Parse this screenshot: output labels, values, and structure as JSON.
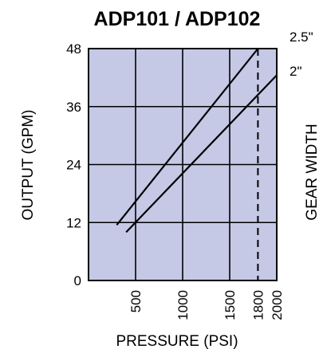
{
  "chart_data": {
    "type": "line",
    "title": "ADP101 / ADP102",
    "xlabel": "PRESSURE (PSI)",
    "ylabel": "OUTPUT (GPM)",
    "y2label": "GEAR WIDTH",
    "xlim": [
      0,
      2000
    ],
    "ylim": [
      0,
      48
    ],
    "x_ticks": [
      500,
      1000,
      1500,
      1800,
      2000
    ],
    "x_tick_labels": [
      "500",
      "1000",
      "1500",
      "1800",
      "2000"
    ],
    "y_ticks": [
      0,
      12,
      24,
      36,
      48
    ],
    "y_tick_labels": [
      "0",
      "12",
      "24",
      "36",
      "48"
    ],
    "grid": true,
    "plot_background": "#c5c9e6",
    "reference_line": {
      "x": 1800,
      "style": "dashed"
    },
    "series": [
      {
        "name": "2.5\"",
        "x": [
          300,
          1800
        ],
        "y": [
          11.5,
          48
        ]
      },
      {
        "name": "2\"",
        "x": [
          400,
          2000
        ],
        "y": [
          10,
          42.5
        ]
      }
    ]
  }
}
